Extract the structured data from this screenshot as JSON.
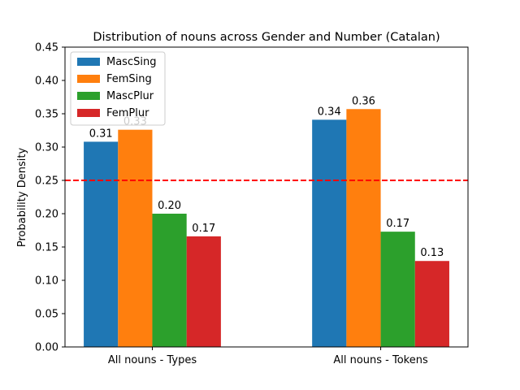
{
  "chart_data": {
    "type": "bar",
    "title": "Distribution of nouns across Gender and Number (Catalan)",
    "xlabel": "",
    "ylabel": "Probability Density",
    "categories": [
      "All nouns - Types",
      "All nouns - Tokens"
    ],
    "series": [
      {
        "name": "MascSing",
        "color": "#1f77b4",
        "values": [
          0.308,
          0.341
        ],
        "labels": [
          "0.31",
          "0.34"
        ]
      },
      {
        "name": "FemSing",
        "color": "#ff7f0e",
        "values": [
          0.326,
          0.357
        ],
        "labels": [
          "0.33",
          "0.36"
        ]
      },
      {
        "name": "MascPlur",
        "color": "#2ca02c",
        "values": [
          0.2,
          0.173
        ],
        "labels": [
          "0.20",
          "0.17"
        ]
      },
      {
        "name": "FemPlur",
        "color": "#d62728",
        "values": [
          0.166,
          0.129
        ],
        "labels": [
          "0.17",
          "0.13"
        ]
      }
    ],
    "ylim": [
      0,
      0.45
    ],
    "yticks": [
      "0.00",
      "0.05",
      "0.10",
      "0.15",
      "0.20",
      "0.25",
      "0.30",
      "0.35",
      "0.40",
      "0.45"
    ],
    "reference_line": {
      "y": 0.25,
      "color": "#ff0000",
      "style": "dashed"
    },
    "legend_position": "top-left",
    "grid": false
  }
}
